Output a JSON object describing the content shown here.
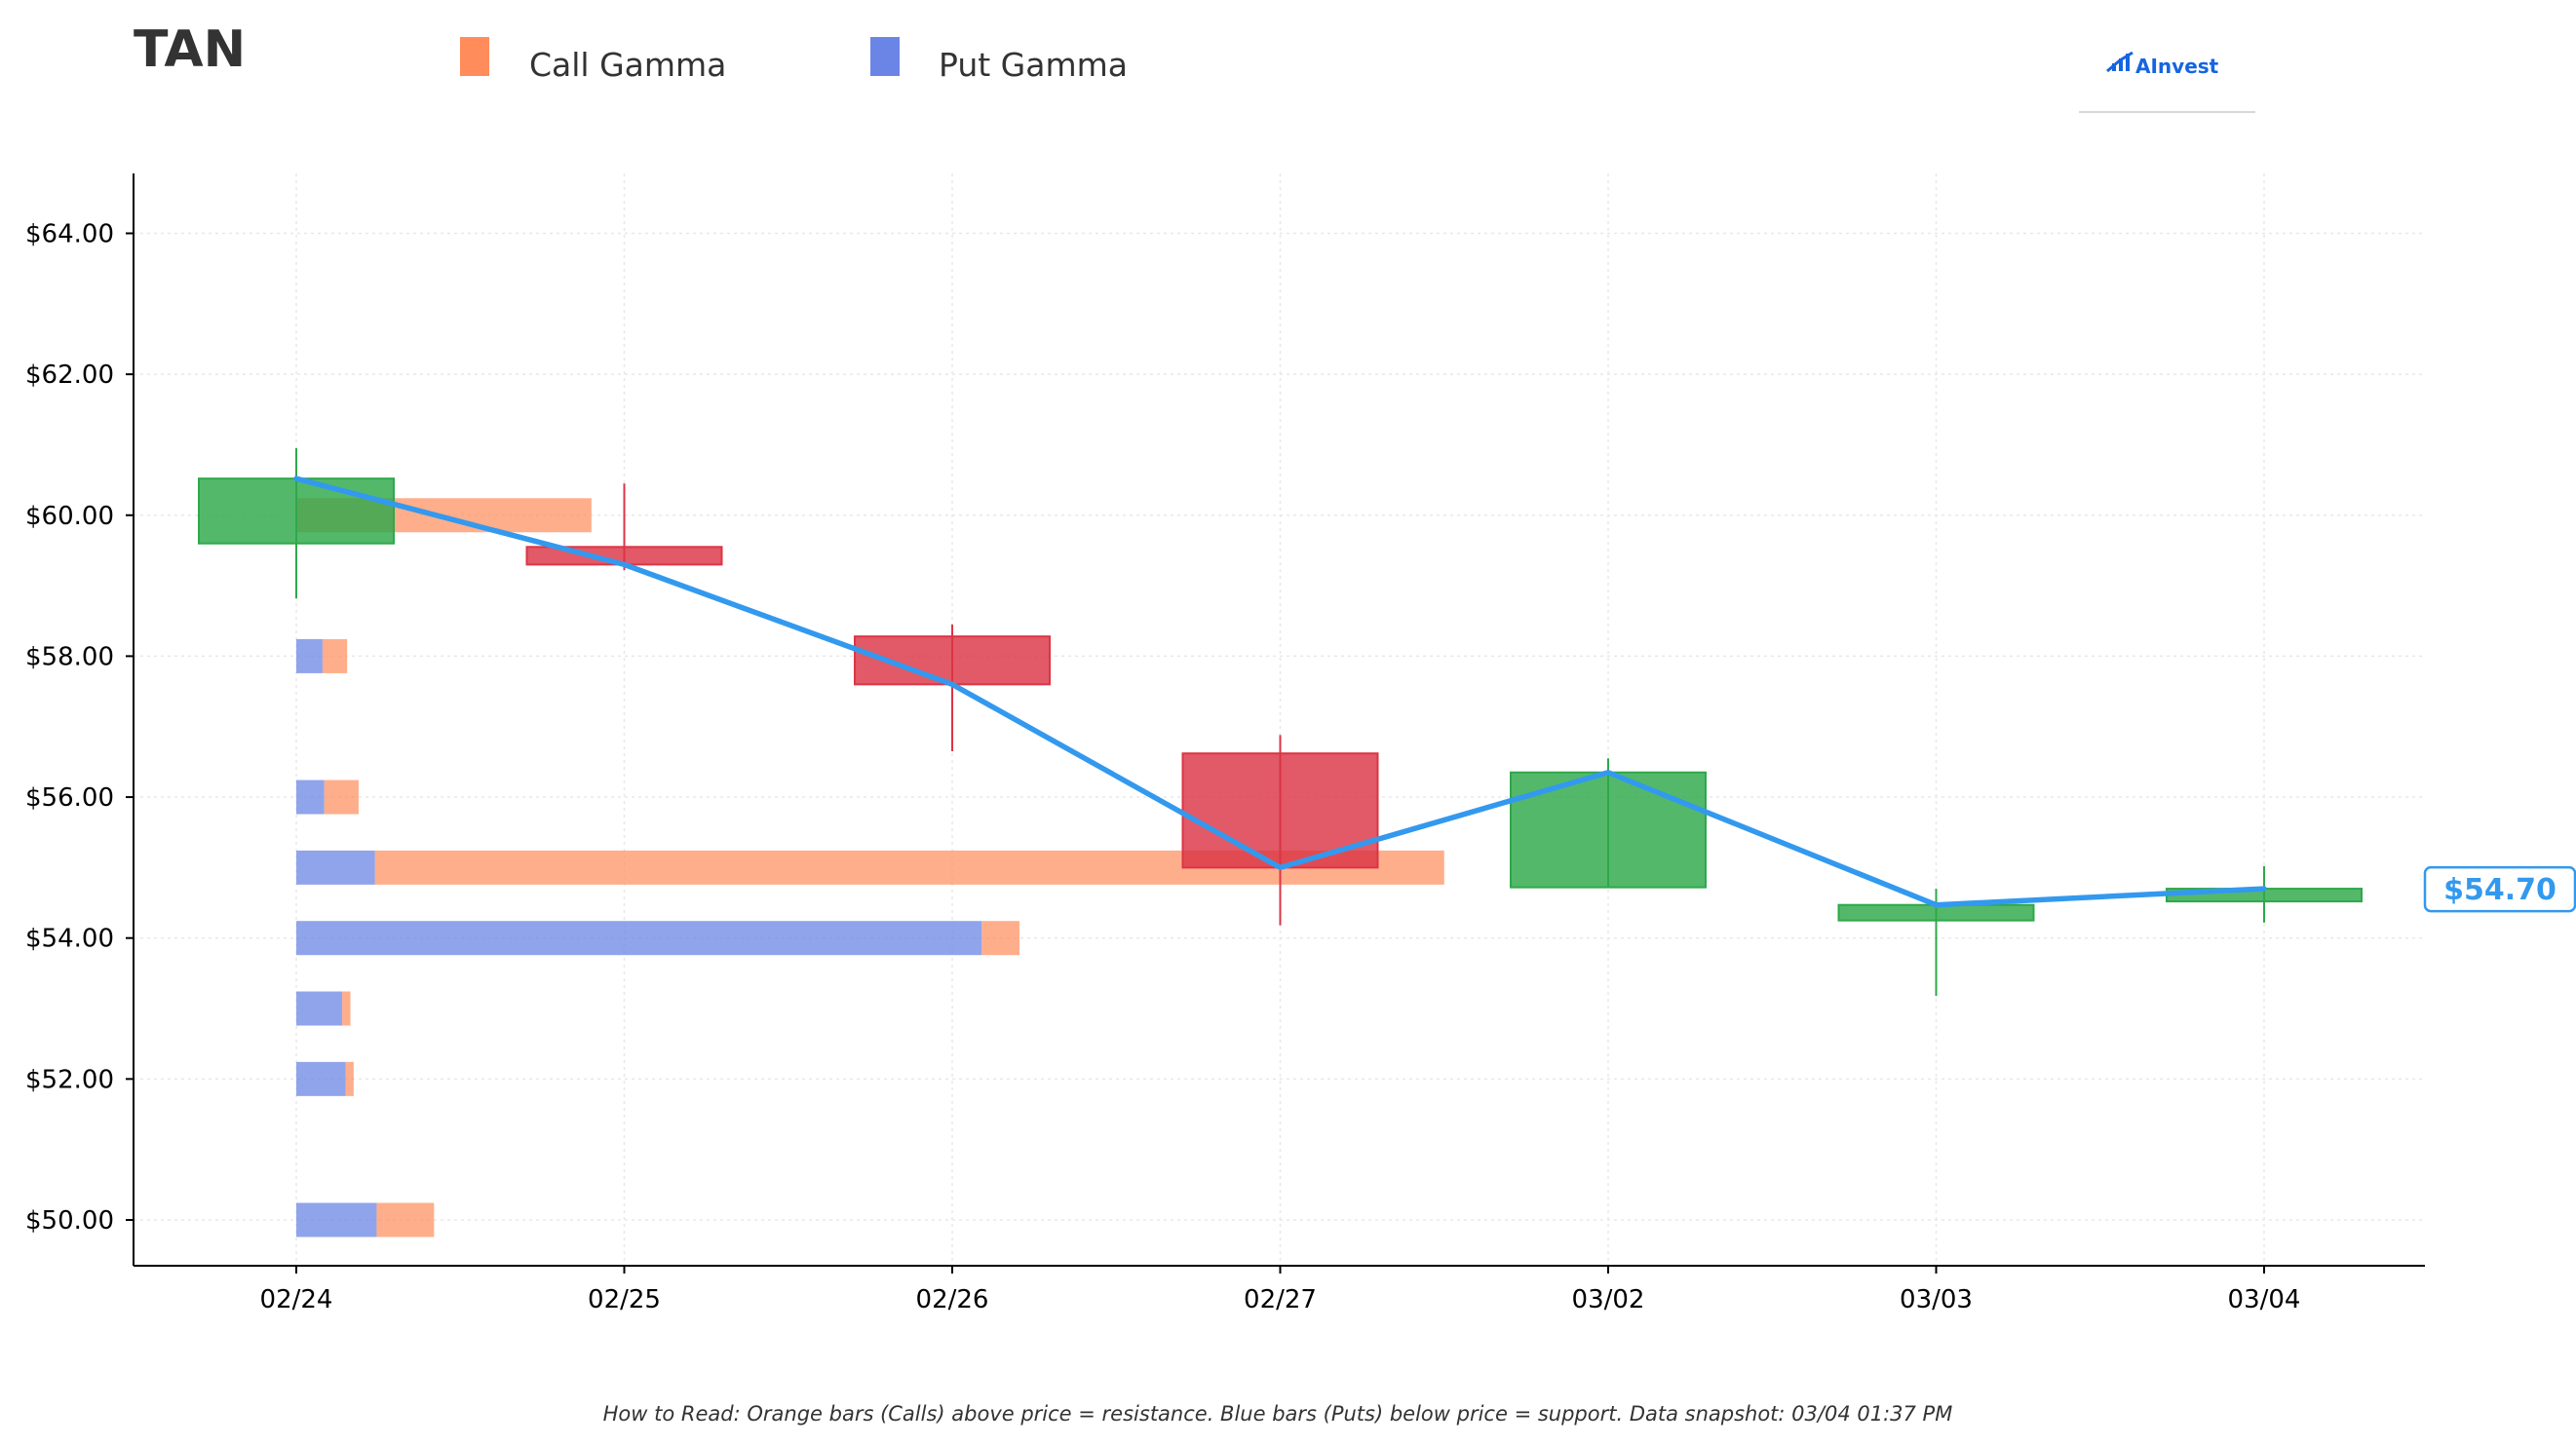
{
  "header": {
    "ticker": "TAN",
    "logo_text": "AInvest"
  },
  "footer": {
    "note": "How to Read: Orange bars (Calls) above price = resistance. Blue bars (Puts) below price = support. Data snapshot: 03/04 01:37 PM"
  },
  "colors": {
    "call": "#ff8c5a",
    "put": "#6b85e6",
    "up": "#2ea84a",
    "down": "#dc3545",
    "price_line": "#3399ee",
    "grid": "#e8e8e8",
    "logo": "#1565e0"
  },
  "chart_data": {
    "type": "candlestick",
    "title": "TAN",
    "legend": [
      {
        "name": "Call Gamma",
        "color": "#ff8c5a"
      },
      {
        "name": "Put Gamma",
        "color": "#6b85e6"
      }
    ],
    "legend_position": "top",
    "x_categories": [
      "02/24",
      "02/25",
      "02/26",
      "02/27",
      "03/02",
      "03/03",
      "03/04"
    ],
    "y_ticks": [
      "$50.00",
      "$52.00",
      "$54.00",
      "$56.00",
      "$58.00",
      "$60.00",
      "$62.00",
      "$64.00"
    ],
    "y_tick_values": [
      50,
      52,
      54,
      56,
      58,
      60,
      62,
      64
    ],
    "ylim": [
      49.35,
      64.85
    ],
    "grid": true,
    "candles": [
      {
        "date": "02/24",
        "open": 59.6,
        "close": 60.52,
        "high": 60.95,
        "low": 58.82
      },
      {
        "date": "02/25",
        "open": 59.55,
        "close": 59.3,
        "high": 60.45,
        "low": 59.22
      },
      {
        "date": "02/26",
        "open": 58.28,
        "close": 57.6,
        "high": 58.45,
        "low": 56.65
      },
      {
        "date": "02/27",
        "open": 56.62,
        "close": 55.0,
        "high": 56.88,
        "low": 54.18
      },
      {
        "date": "03/02",
        "open": 54.72,
        "close": 56.35,
        "high": 56.55,
        "low": 54.72
      },
      {
        "date": "03/03",
        "open": 54.25,
        "close": 54.47,
        "high": 54.7,
        "low": 53.18
      },
      {
        "date": "03/04",
        "open": 54.52,
        "close": 54.7,
        "high": 55.02,
        "low": 54.22
      }
    ],
    "price_line": [
      60.52,
      59.3,
      57.6,
      55.0,
      56.35,
      54.47,
      54.7
    ],
    "last_price_label": "$54.70",
    "gamma_strikes": [
      {
        "strike": 60,
        "put": 0.0,
        "call": 0.9
      },
      {
        "strike": 58,
        "put": 0.08,
        "call": 0.075
      },
      {
        "strike": 56,
        "put": 0.085,
        "call": 0.105
      },
      {
        "strike": 55,
        "put": 0.24,
        "call": 3.26
      },
      {
        "strike": 54,
        "put": 2.09,
        "call": 0.115
      },
      {
        "strike": 53,
        "put": 0.14,
        "call": 0.025
      },
      {
        "strike": 52,
        "put": 0.15,
        "call": 0.025
      },
      {
        "strike": 50,
        "put": 0.245,
        "call": 0.175
      }
    ],
    "gamma_units_note": "bar lengths in x-category units starting at 02/24"
  }
}
